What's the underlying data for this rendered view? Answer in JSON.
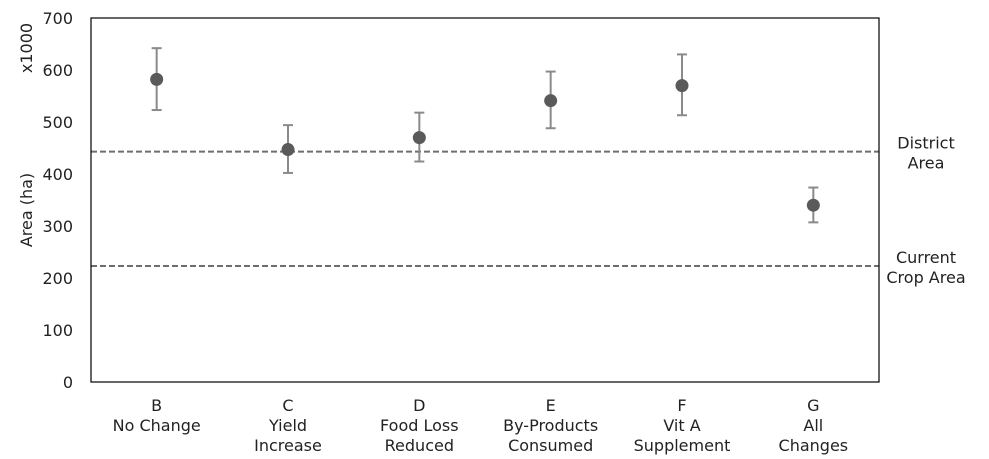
{
  "chart_data": {
    "type": "scatter",
    "title": "",
    "ylabel": "Area (ha)",
    "yunit_label": "x1000",
    "ylim": [
      0,
      700
    ],
    "yticks": [
      0,
      100,
      200,
      300,
      400,
      500,
      600,
      700
    ],
    "grid": false,
    "categories": [
      [
        "B",
        "No Change"
      ],
      [
        "C",
        "Yield",
        "Increase"
      ],
      [
        "D",
        "Food Loss",
        "Reduced"
      ],
      [
        "E",
        "By-Products",
        "Consumed"
      ],
      [
        "F",
        "Vit A",
        "Supplement"
      ],
      [
        "G",
        "All",
        "Changes"
      ]
    ],
    "series": [
      {
        "values": [
          582,
          447,
          470,
          541,
          570,
          340
        ],
        "error_low": [
          523,
          402,
          424,
          488,
          513,
          307
        ],
        "error_high": [
          642,
          494,
          518,
          597,
          630,
          374
        ]
      }
    ],
    "reference_lines": [
      {
        "value": 443,
        "label": [
          "District",
          "Area"
        ]
      },
      {
        "value": 223,
        "label": [
          "Current",
          "Crop Area"
        ]
      }
    ],
    "colors": {
      "marker": "#5a5a5a",
      "errorbar": "#8a8a8a",
      "refline": "#6e6e6e",
      "axis": "#000000"
    }
  }
}
